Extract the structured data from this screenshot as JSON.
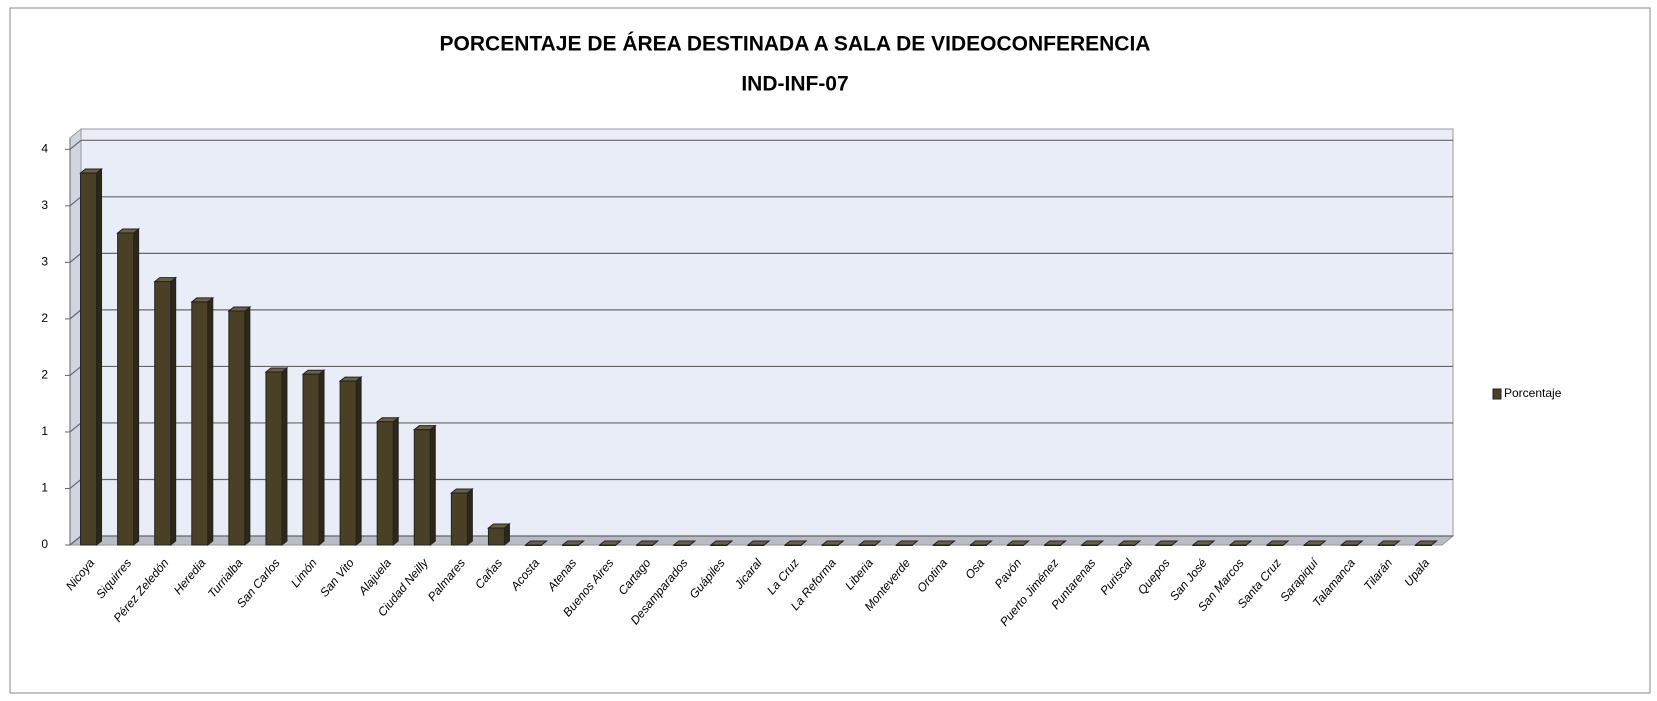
{
  "chart_data": {
    "type": "bar3d",
    "title": "PORCENTAJE DE ÁREA DESTINADA A SALA DE VIDEOCONFERENCIA",
    "subtitle": "IND-INF-07",
    "categories": [
      "Nicoya",
      "Siquirres",
      "Pérez Zeledón",
      "Heredia",
      "Turrialba",
      "San Carlos",
      "Limón",
      "San Vito",
      "Alajuela",
      "Ciudad Neilly",
      "Palmares",
      "Cañas",
      "Acosta",
      "Atenas",
      "Buenos Aires",
      "Cartago",
      "Desamparados",
      "Guápiles",
      "Jicaral",
      "La Cruz",
      "La Reforma",
      "Liberia",
      "Monteverde",
      "Orotina",
      "Osa",
      "Pavón",
      "Puerto Jiménez",
      "Puntarenas",
      "Puriscal",
      "Quepos",
      "San José",
      "San Marcos",
      "Santa Cruz",
      "Sarapiquí",
      "Talamanca",
      "Tilarán",
      "Upala"
    ],
    "series": [
      {
        "name": "Porcentaje",
        "color": "#4a4026",
        "values": [
          3.29,
          2.76,
          2.33,
          2.15,
          2.07,
          1.53,
          1.51,
          1.45,
          1.09,
          1.02,
          0.46,
          0.15,
          0,
          0,
          0,
          0,
          0,
          0,
          0,
          0,
          0,
          0,
          0,
          0,
          0,
          0,
          0,
          0,
          0,
          0,
          0,
          0,
          0,
          0,
          0,
          0,
          0
        ]
      }
    ],
    "ylim": [
      0,
      3.6
    ],
    "yticks": [
      0,
      {
        "value": 0.5,
        "label": "1"
      },
      1,
      {
        "value": 1.5,
        "label": "2"
      },
      2,
      {
        "value": 2.5,
        "label": "3"
      },
      3,
      {
        "value": 3.5,
        "label": "4"
      }
    ],
    "grid": true,
    "legend": "right"
  }
}
